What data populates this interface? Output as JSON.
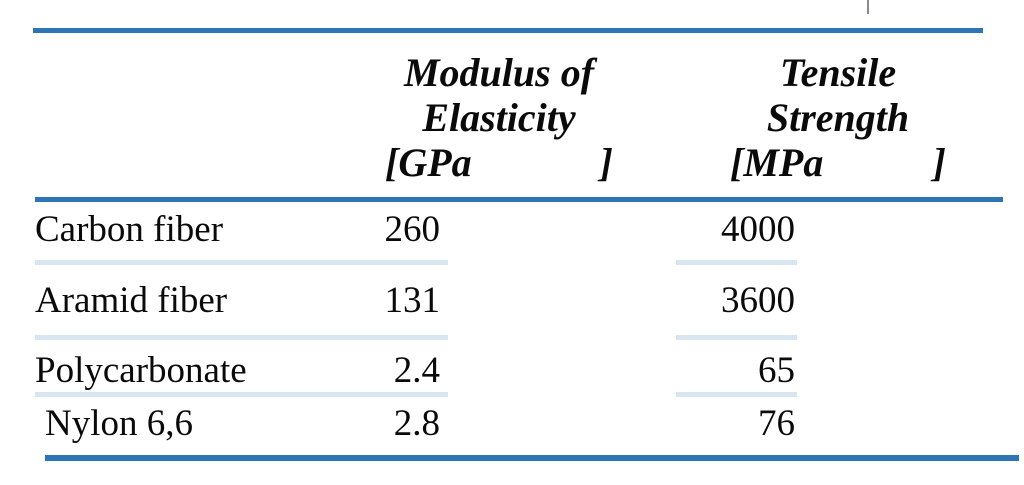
{
  "table": {
    "columns": [
      {
        "label": ""
      },
      {
        "title_line1": "Modulus of",
        "title_line2": "Elasticity",
        "unit_open": "[GPa",
        "unit_close": "]"
      },
      {
        "title_line1": "Tensile",
        "title_line2": "Strength",
        "unit_open": "[MPa",
        "unit_close": "]"
      }
    ],
    "rows": [
      {
        "material": "Carbon fiber",
        "modulus_gpa": "260",
        "tensile_mpa": "4000"
      },
      {
        "material": "Aramid fiber",
        "modulus_gpa": "131",
        "tensile_mpa": "3600"
      },
      {
        "material": "Polycarbonate",
        "modulus_gpa": "2.4",
        "tensile_mpa": "65"
      },
      {
        "material": "Nylon 6,6",
        "modulus_gpa": "2.8",
        "tensile_mpa": "76"
      }
    ]
  },
  "colors": {
    "rule_dark": "#2E75B6",
    "rule_light": "#D9E5F1",
    "text": "#0A0A0A",
    "tick_gray": "#8A8A8A"
  }
}
